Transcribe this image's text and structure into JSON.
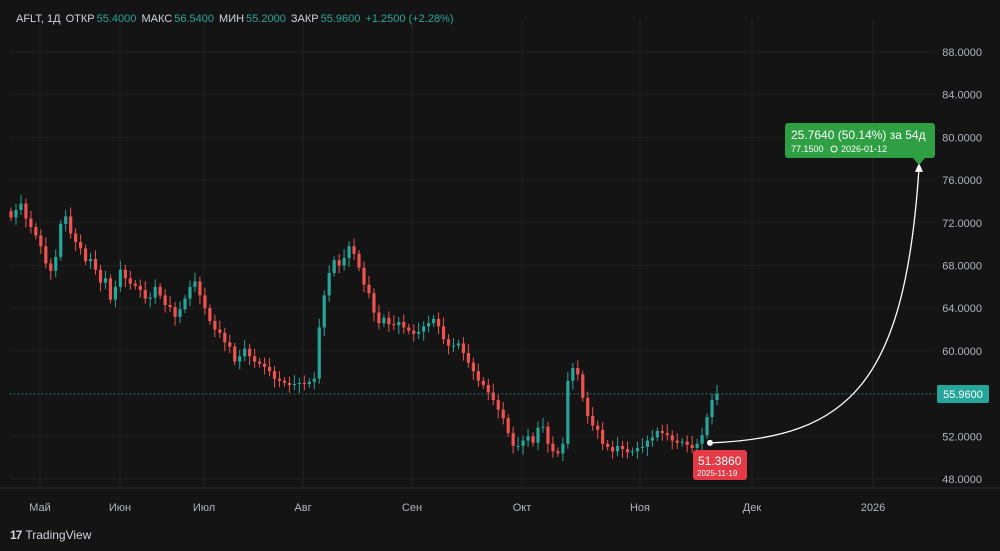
{
  "header": {
    "ticker": "AFLT, 1Д",
    "open_label": "ОТКР",
    "open": "55.4000",
    "high_label": "МАКС",
    "high": "56.5400",
    "low_label": "МИН",
    "low": "55.2000",
    "close_label": "ЗАКР",
    "close": "55.9600",
    "change": "+1.2500 (+2.28%)"
  },
  "brand": {
    "name": "TradingView"
  },
  "colors": {
    "up": "#26a69a",
    "down": "#ef5350",
    "accent": "#2ea043",
    "marker": "#e53945"
  },
  "chart_data": {
    "type": "candlestick",
    "y_ticks": [
      "88.0000",
      "84.0000",
      "80.0000",
      "76.0000",
      "72.0000",
      "68.0000",
      "64.0000",
      "60.0000",
      "56.0000",
      "52.0000",
      "48.0000"
    ],
    "ylim": [
      46.5,
      90.5
    ],
    "x_labels": [
      "Май",
      "Июн",
      "Июл",
      "Авг",
      "Сен",
      "Окт",
      "Ноя",
      "Дек",
      "2026"
    ],
    "last_price": "55.9600",
    "closes": [
      72.5,
      73.2,
      73.8,
      72.4,
      71.6,
      70.8,
      69.8,
      68.2,
      67.5,
      68.8,
      71.9,
      72.6,
      71.0,
      70.2,
      69.6,
      68.4,
      68.6,
      67.6,
      66.4,
      66.8,
      64.8,
      66.0,
      67.6,
      66.8,
      66.3,
      66.1,
      65.7,
      64.9,
      65.0,
      66.0,
      65.2,
      64.3,
      64.1,
      63.2,
      63.9,
      64.9,
      66.0,
      66.5,
      65.2,
      64.0,
      62.8,
      62.0,
      61.7,
      60.8,
      60.4,
      59.0,
      59.5,
      60.2,
      59.5,
      59.0,
      58.8,
      58.5,
      58.1,
      57.4,
      57.2,
      57.0,
      56.8,
      56.9,
      57.0,
      56.9,
      57.1,
      57.4,
      62.2,
      65.2,
      67.3,
      68.5,
      68.0,
      68.7,
      69.8,
      69.1,
      67.8,
      66.2,
      65.4,
      63.6,
      62.6,
      63.1,
      62.5,
      62.4,
      62.7,
      62.2,
      61.9,
      61.6,
      61.8,
      62.3,
      62.6,
      63.0,
      62.3,
      61.1,
      60.5,
      60.5,
      60.7,
      59.8,
      58.9,
      58.1,
      57.2,
      56.8,
      56.1,
      55.4,
      54.5,
      53.7,
      52.3,
      51.1,
      51.1,
      51.6,
      52.0,
      51.4,
      52.8,
      52.9,
      51.3,
      50.6,
      50.4,
      51.3,
      57.2,
      58.4,
      57.8,
      55.6,
      53.9,
      53.0,
      52.6,
      51.3,
      51.0,
      50.6,
      51.1,
      50.8,
      50.5,
      50.6,
      50.9,
      51.0,
      51.6,
      51.9,
      52.5,
      52.3,
      52.1,
      51.6,
      51.4,
      51.5,
      51.2,
      50.9,
      51.3,
      52.1,
      53.8,
      55.4,
      55.96
    ],
    "last_point_date": "2025-11-19",
    "last_point_value": "51.3860",
    "target": {
      "headline": "25.7640 (50.14%) за 54д",
      "price": "77.1500",
      "date": "2026-01-12",
      "price_value": 77.15
    },
    "start_marker": {
      "value": 51.386
    }
  }
}
